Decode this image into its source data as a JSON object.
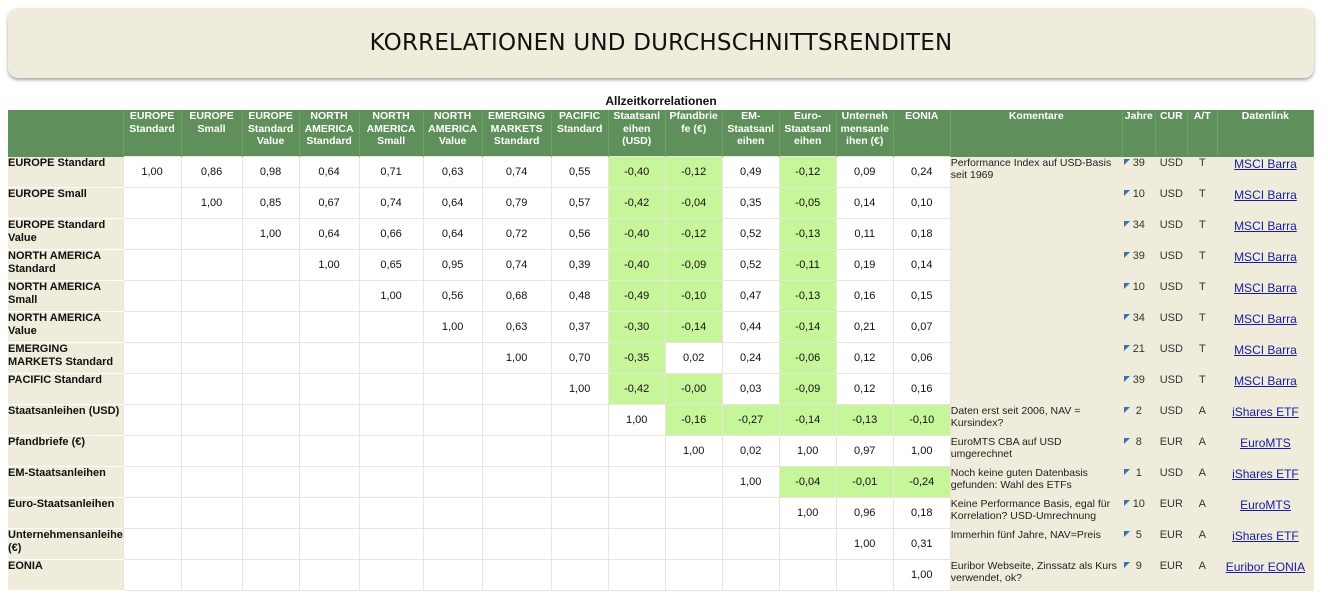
{
  "title": "KORRELATIONEN UND DURCHSCHNITTSRENDITEN",
  "subtitle": "Allzeitkorrelationen",
  "headers": [
    "",
    "EUROPE Standard",
    "EUROPE Small",
    "EUROPE Standard Value",
    "NORTH AMERICA Standard",
    "NORTH AMERICA Small",
    "NORTH AMERICA Value",
    "EMERGING MARKETS Standard",
    "PACIFIC Standard",
    "Staatsanl eihen (USD)",
    "Pfandbrie fe (€)",
    "EM-Staatsanl eihen",
    "Euro-Staatsanl eihen",
    "Unterneh mensanle ihen (€)",
    "EONIA",
    "Komentare",
    "Jahre",
    "CUR",
    "A/T",
    "Datenlink"
  ],
  "rows": [
    {
      "label": "EUROPE Standard",
      "cells": [
        "1,00",
        "0,86",
        "0,98",
        "0,64",
        "0,71",
        "0,63",
        "0,74",
        "0,55",
        "-0,40",
        "-0,12",
        "0,49",
        "-0,12",
        "0,09",
        "0,24"
      ],
      "comment": "Performance Index auf USD-Basis seit 1969",
      "years": "39",
      "cur": "USD",
      "at": "T",
      "link": "MSCI Barra"
    },
    {
      "label": "EUROPE Small",
      "cells": [
        "",
        "1,00",
        "0,85",
        "0,67",
        "0,74",
        "0,64",
        "0,79",
        "0,57",
        "-0,42",
        "-0,04",
        "0,35",
        "-0,05",
        "0,14",
        "0,10"
      ],
      "comment": "",
      "years": "10",
      "cur": "USD",
      "at": "T",
      "link": "MSCI Barra"
    },
    {
      "label": "EUROPE Standard Value",
      "cells": [
        "",
        "",
        "1,00",
        "0,64",
        "0,66",
        "0,64",
        "0,72",
        "0,56",
        "-0,40",
        "-0,12",
        "0,52",
        "-0,13",
        "0,11",
        "0,18"
      ],
      "comment": "",
      "years": "34",
      "cur": "USD",
      "at": "T",
      "link": "MSCI Barra"
    },
    {
      "label": "NORTH AMERICA Standard",
      "cells": [
        "",
        "",
        "",
        "1,00",
        "0,65",
        "0,95",
        "0,74",
        "0,39",
        "-0,40",
        "-0,09",
        "0,52",
        "-0,11",
        "0,19",
        "0,14"
      ],
      "comment": "",
      "years": "39",
      "cur": "USD",
      "at": "T",
      "link": "MSCI Barra"
    },
    {
      "label": "NORTH AMERICA Small",
      "cells": [
        "",
        "",
        "",
        "",
        "1,00",
        "0,56",
        "0,68",
        "0,48",
        "-0,49",
        "-0,10",
        "0,47",
        "-0,13",
        "0,16",
        "0,15"
      ],
      "comment": "",
      "years": "10",
      "cur": "USD",
      "at": "T",
      "link": "MSCI Barra"
    },
    {
      "label": "NORTH AMERICA Value",
      "cells": [
        "",
        "",
        "",
        "",
        "",
        "1,00",
        "0,63",
        "0,37",
        "-0,30",
        "-0,14",
        "0,44",
        "-0,14",
        "0,21",
        "0,07"
      ],
      "comment": "",
      "years": "34",
      "cur": "USD",
      "at": "T",
      "link": "MSCI Barra"
    },
    {
      "label": "EMERGING MARKETS Standard",
      "cells": [
        "",
        "",
        "",
        "",
        "",
        "",
        "1,00",
        "0,70",
        "-0,35",
        "0,02",
        "0,24",
        "-0,06",
        "0,12",
        "0,06"
      ],
      "comment": "",
      "years": "21",
      "cur": "USD",
      "at": "T",
      "link": "MSCI Barra"
    },
    {
      "label": "PACIFIC Standard",
      "cells": [
        "",
        "",
        "",
        "",
        "",
        "",
        "",
        "1,00",
        "-0,42",
        "-0,00",
        "0,03",
        "-0,09",
        "0,12",
        "0,16"
      ],
      "comment": "",
      "years": "39",
      "cur": "USD",
      "at": "T",
      "link": "MSCI Barra"
    },
    {
      "label": "Staatsanleihen (USD)",
      "cells": [
        "",
        "",
        "",
        "",
        "",
        "",
        "",
        "",
        "1,00",
        "-0,16",
        "-0,27",
        "-0,14",
        "-0,13",
        "-0,10"
      ],
      "comment": "Daten erst seit 2006, NAV = Kursindex?",
      "years": "2",
      "cur": "USD",
      "at": "A",
      "link": "iShares ETF"
    },
    {
      "label": "Pfandbriefe (€)",
      "cells": [
        "",
        "",
        "",
        "",
        "",
        "",
        "",
        "",
        "",
        "1,00",
        "0,02",
        "1,00",
        "0,97",
        "1,00"
      ],
      "comment": "EuroMTS CBA auf USD umgerechnet",
      "years": "8",
      "cur": "EUR",
      "at": "A",
      "link": "EuroMTS"
    },
    {
      "label": "EM-Staatsanleihen",
      "cells": [
        "",
        "",
        "",
        "",
        "",
        "",
        "",
        "",
        "",
        "",
        "1,00",
        "-0,04",
        "-0,01",
        "-0,24"
      ],
      "comment": "Noch keine guten Datenbasis gefunden: Wahl des ETFs",
      "years": "1",
      "cur": "USD",
      "at": "A",
      "link": "iShares ETF"
    },
    {
      "label": "Euro-Staatsanleihen",
      "cells": [
        "",
        "",
        "",
        "",
        "",
        "",
        "",
        "",
        "",
        "",
        "",
        "1,00",
        "0,96",
        "0,18"
      ],
      "comment": "Keine Performance Basis, egal für Korrelation? USD-Umrechnung",
      "years": "10",
      "cur": "EUR",
      "at": "A",
      "link": "EuroMTS"
    },
    {
      "label": "Unternehmensanleihen (€)",
      "cells": [
        "",
        "",
        "",
        "",
        "",
        "",
        "",
        "",
        "",
        "",
        "",
        "",
        "1,00",
        "0,31"
      ],
      "comment": "Immerhin fünf Jahre, NAV=Preis",
      "years": "5",
      "cur": "EUR",
      "at": "A",
      "link": "iShares ETF"
    },
    {
      "label": "EONIA",
      "cells": [
        "",
        "",
        "",
        "",
        "",
        "",
        "",
        "",
        "",
        "",
        "",
        "",
        "",
        "1,00"
      ],
      "comment": "Euribor Webseite, Zinssatz als Kurs verwendet, ok?",
      "years": "9",
      "cur": "EUR",
      "at": "A",
      "link": "Euribor EONIA"
    }
  ],
  "colors": {
    "header_bg": "#5f8f5a",
    "label_bg": "#efecdc",
    "negative_highlight": "#c6f59a",
    "link": "#1a1aa0"
  }
}
